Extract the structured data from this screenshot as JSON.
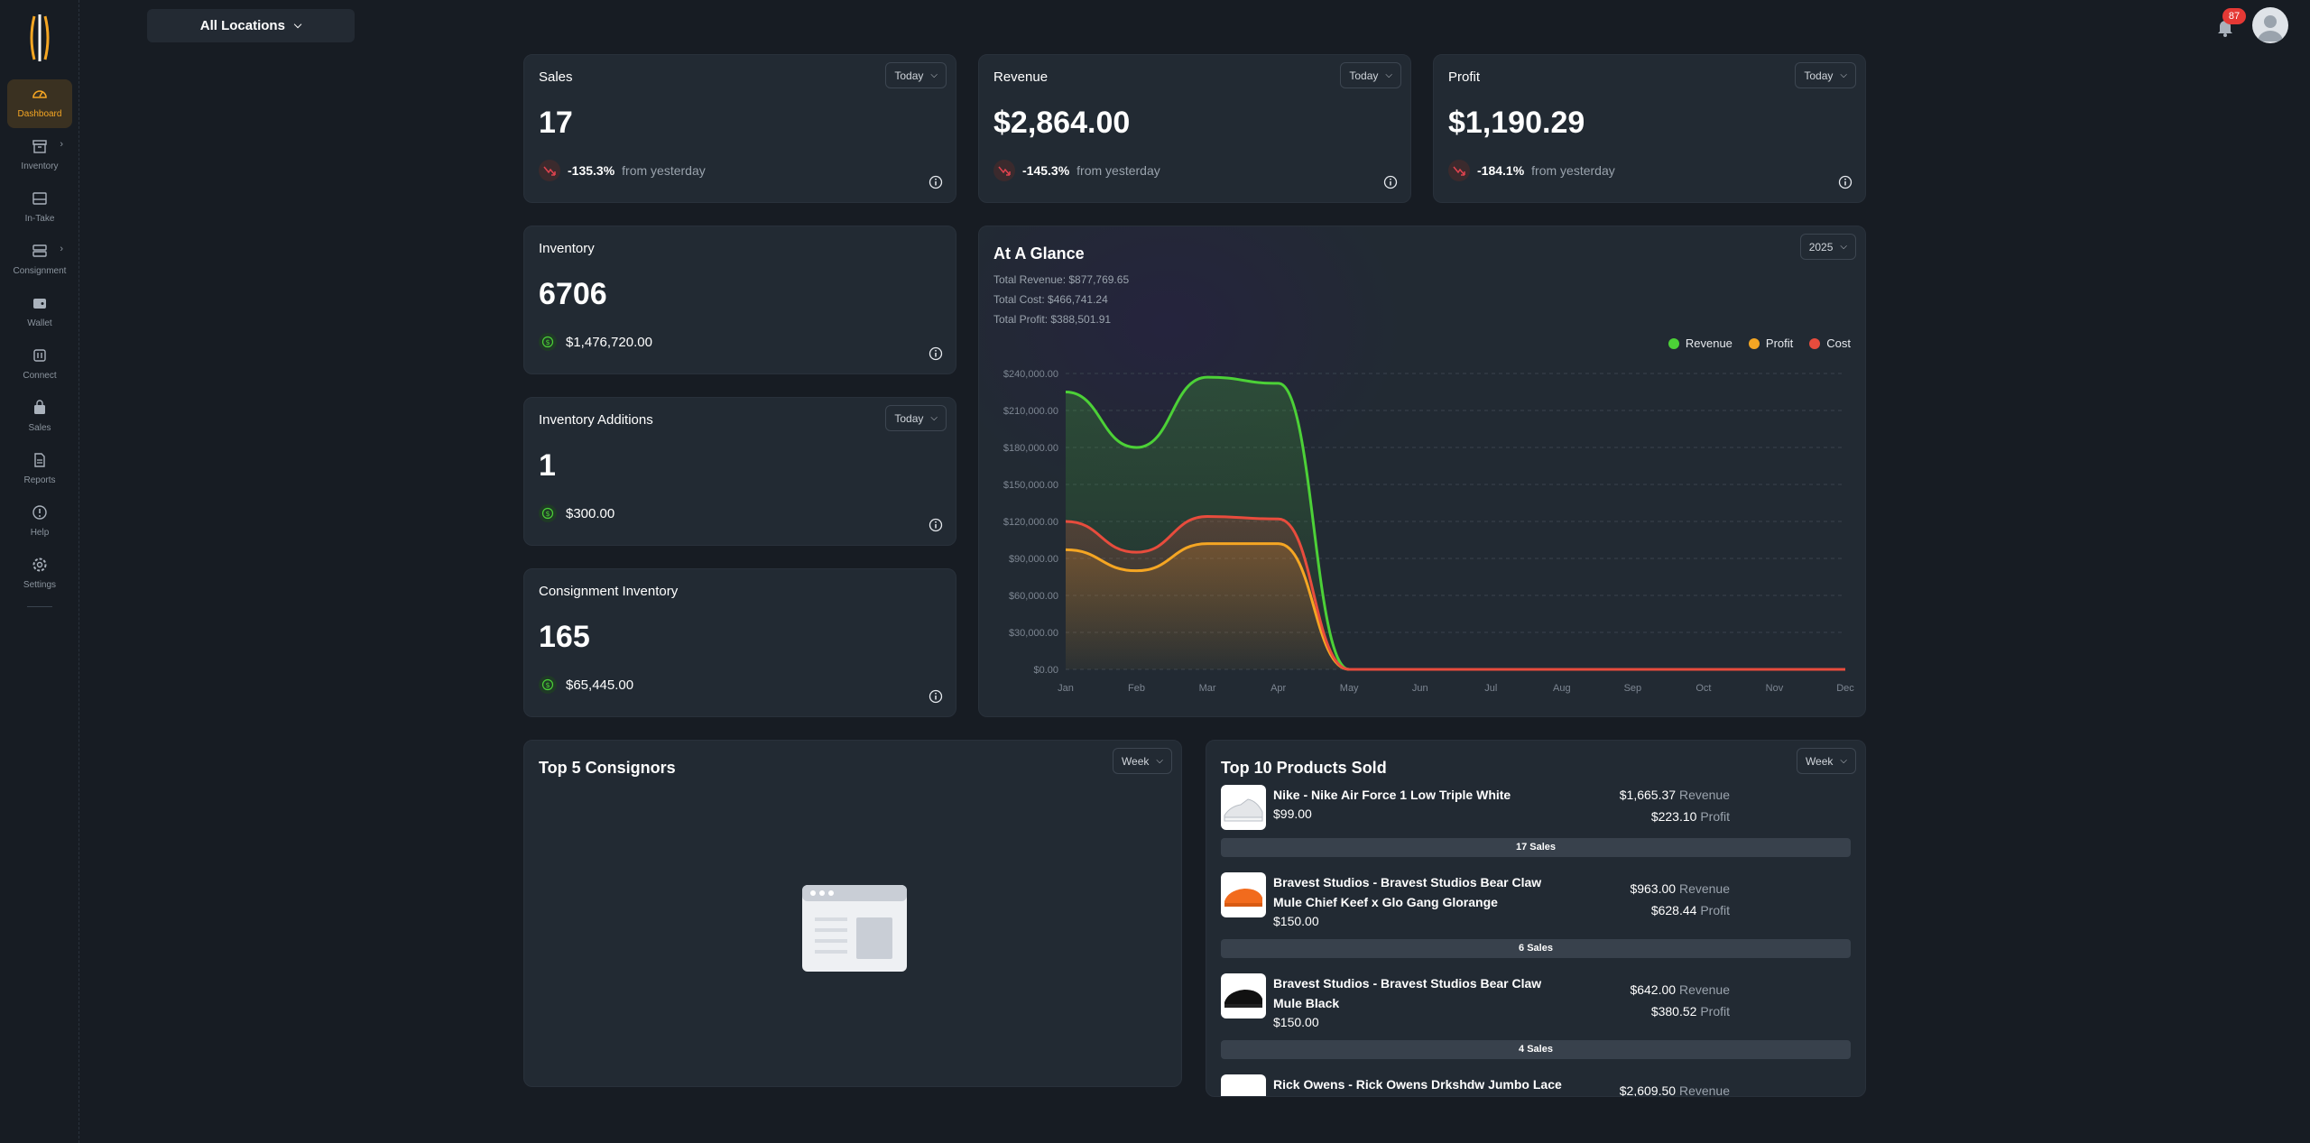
{
  "colors": {
    "accent": "#f5a623",
    "revenue": "#4cd137",
    "profit": "#f5a623",
    "cost": "#e84c3d",
    "negative": "#e0434f",
    "positive": "#4cd137"
  },
  "sidebar": {
    "items": [
      {
        "label": "Dashboard",
        "icon": "speedometer-icon",
        "active": true
      },
      {
        "label": "Inventory",
        "icon": "archive-box-icon",
        "has_chevron": true
      },
      {
        "label": "In-Take",
        "icon": "tray-icon"
      },
      {
        "label": "Consignment",
        "icon": "stack-icon",
        "has_chevron": true
      },
      {
        "label": "Wallet",
        "icon": "wallet-icon"
      },
      {
        "label": "Connect",
        "icon": "connect-icon"
      },
      {
        "label": "Sales",
        "icon": "shopping-bag-icon"
      },
      {
        "label": "Reports",
        "icon": "document-icon"
      },
      {
        "label": "Help",
        "icon": "help-icon"
      },
      {
        "label": "Settings",
        "icon": "gear-icon"
      }
    ]
  },
  "topbar": {
    "location": "All Locations",
    "notification_count": "87"
  },
  "sales": {
    "title": "Sales",
    "period": "Today",
    "value": "17",
    "change": "-135.3%",
    "change_suffix": "from yesterday"
  },
  "revenue": {
    "title": "Revenue",
    "period": "Today",
    "value": "$2,864.00",
    "change": "-145.3%",
    "change_suffix": "from yesterday"
  },
  "profit": {
    "title": "Profit",
    "period": "Today",
    "value": "$1,190.29",
    "change": "-184.1%",
    "change_suffix": "from yesterday"
  },
  "inventory": {
    "title": "Inventory",
    "value": "6706",
    "amount": "$1,476,720.00"
  },
  "inventory_additions": {
    "title": "Inventory Additions",
    "period": "Today",
    "value": "1",
    "amount": "$300.00"
  },
  "consignment_inventory": {
    "title": "Consignment Inventory",
    "value": "165",
    "amount": "$65,445.00"
  },
  "glance": {
    "title": "At A Glance",
    "year": "2025",
    "total_revenue": "Total Revenue: $877,769.65",
    "total_cost": "Total Cost: $466,741.24",
    "total_profit": "Total Profit: $388,501.91"
  },
  "chart_data": {
    "type": "area",
    "categories": [
      "Jan",
      "Feb",
      "Mar",
      "Apr",
      "May",
      "Jun",
      "Jul",
      "Aug",
      "Sep",
      "Oct",
      "Nov",
      "Dec"
    ],
    "ylim": [
      0,
      240000
    ],
    "yticks": [
      "$0.00",
      "$30,000.00",
      "$60,000.00",
      "$90,000.00",
      "$120,000.00",
      "$150,000.00",
      "$180,000.00",
      "$210,000.00",
      "$240,000.00"
    ],
    "grid": true,
    "legend": "top-right",
    "series": [
      {
        "name": "Revenue",
        "color": "#4cd137",
        "values": [
          225000,
          180000,
          237000,
          232000,
          0,
          0,
          0,
          0,
          0,
          0,
          0,
          0
        ]
      },
      {
        "name": "Profit",
        "color": "#f5a623",
        "values": [
          97000,
          80000,
          102000,
          102000,
          0,
          0,
          0,
          0,
          0,
          0,
          0,
          0
        ]
      },
      {
        "name": "Cost",
        "color": "#e84c3d",
        "values": [
          120000,
          95000,
          124000,
          122000,
          0,
          0,
          0,
          0,
          0,
          0,
          0,
          0
        ]
      }
    ]
  },
  "consignors": {
    "title": "Top 5 Consignors",
    "period": "Week"
  },
  "products": {
    "title": "Top 10 Products Sold",
    "period": "Week",
    "items": [
      {
        "name": "Nike - Nike Air Force 1 Low Triple White",
        "price": "$99.00",
        "revenue": "$1,665.37",
        "profit": "$223.10",
        "sales": "17 Sales",
        "img": "white-sneaker-image"
      },
      {
        "name": "Bravest Studios - Bravest Studios Bear Claw Mule Chief Keef x Glo Gang Glorange",
        "price": "$150.00",
        "revenue": "$963.00",
        "profit": "$628.44",
        "sales": "6 Sales",
        "img": "orange-mule-image"
      },
      {
        "name": "Bravest Studios - Bravest Studios Bear Claw Mule Black",
        "price": "$150.00",
        "revenue": "$642.00",
        "profit": "$380.52",
        "sales": "4 Sales",
        "img": "black-mule-image"
      },
      {
        "name": "Rick Owens - Rick Owens Drkshdw Jumbo Lace",
        "revenue": "$2,609.50",
        "img": "rick-owens-image"
      }
    ],
    "revenue_label": "Revenue",
    "profit_label": "Profit"
  }
}
